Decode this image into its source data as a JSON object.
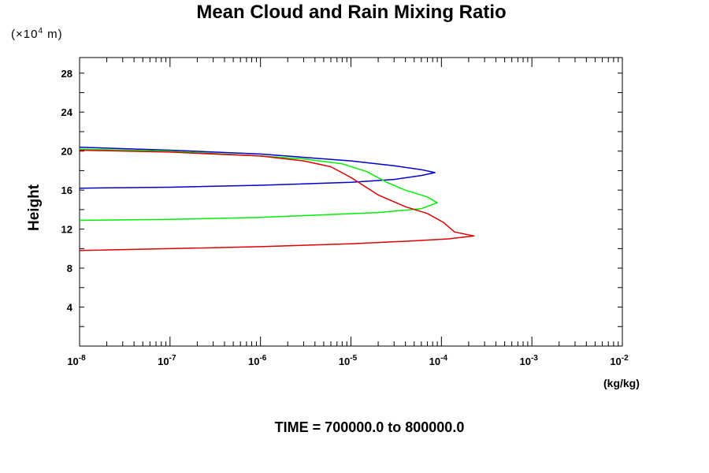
{
  "chart_data": {
    "type": "line",
    "title": "Mean Cloud and Rain Mixing Ratio",
    "yunit": {
      "prefix": "(×10",
      "exp": "4",
      "suffix": " m)"
    },
    "ylabel": "Height",
    "xunit": "(kg/kg)",
    "footer": "TIME = 700000.0 to 800000.0",
    "xscale": "log",
    "xlim": [
      1e-08,
      0.01
    ],
    "ylim": [
      0,
      29.6
    ],
    "xticks": [
      {
        "value": 1e-08,
        "base": "10",
        "exp": "-8"
      },
      {
        "value": 1e-07,
        "base": "10",
        "exp": "-7"
      },
      {
        "value": 1e-06,
        "base": "10",
        "exp": "-6"
      },
      {
        "value": 1e-05,
        "base": "10",
        "exp": "-5"
      },
      {
        "value": 0.0001,
        "base": "10",
        "exp": "-4"
      },
      {
        "value": 0.001,
        "base": "10",
        "exp": "-3"
      },
      {
        "value": 0.01,
        "base": "10",
        "exp": "-2"
      }
    ],
    "yticks": [
      4,
      8,
      12,
      16,
      20,
      24,
      28
    ],
    "series": [
      {
        "color": "#0000cc",
        "points": [
          [
            1e-08,
            20.4
          ],
          [
            1e-07,
            20.1
          ],
          [
            1e-06,
            19.7
          ],
          [
            1e-05,
            19.0
          ],
          [
            3e-05,
            18.5
          ],
          [
            6e-05,
            18.1
          ],
          [
            8.5e-05,
            17.8
          ],
          [
            6e-05,
            17.5
          ],
          [
            3e-05,
            17.1
          ],
          [
            1e-05,
            16.8
          ],
          [
            1e-06,
            16.5
          ],
          [
            1e-07,
            16.3
          ],
          [
            1e-08,
            16.2
          ]
        ]
      },
      {
        "color": "#00ee00",
        "points": [
          [
            1e-08,
            20.2
          ],
          [
            1e-07,
            20.0
          ],
          [
            1e-06,
            19.5
          ],
          [
            3e-06,
            19.2
          ],
          [
            8e-06,
            18.7
          ],
          [
            1.5e-05,
            17.9
          ],
          [
            2.5e-05,
            16.8
          ],
          [
            4e-05,
            16.0
          ],
          [
            7e-05,
            15.3
          ],
          [
            9e-05,
            14.7
          ],
          [
            6e-05,
            14.1
          ],
          [
            2e-05,
            13.7
          ],
          [
            1e-06,
            13.2
          ],
          [
            1e-07,
            13.0
          ],
          [
            1e-08,
            12.9
          ]
        ]
      },
      {
        "color": "#dd0000",
        "points": [
          [
            1e-08,
            20.1
          ],
          [
            1e-07,
            19.9
          ],
          [
            1e-06,
            19.5
          ],
          [
            3e-06,
            19.0
          ],
          [
            6e-06,
            18.4
          ],
          [
            1e-05,
            17.3
          ],
          [
            2e-05,
            15.5
          ],
          [
            4e-05,
            14.3
          ],
          [
            7e-05,
            13.6
          ],
          [
            0.000105,
            12.7
          ],
          [
            0.00014,
            11.7
          ],
          [
            0.00023,
            11.3
          ],
          [
            0.00012,
            11.0
          ],
          [
            5e-05,
            10.8
          ],
          [
            1e-05,
            10.5
          ],
          [
            1e-06,
            10.2
          ],
          [
            1e-07,
            10.0
          ],
          [
            1e-08,
            9.8
          ]
        ]
      }
    ]
  }
}
